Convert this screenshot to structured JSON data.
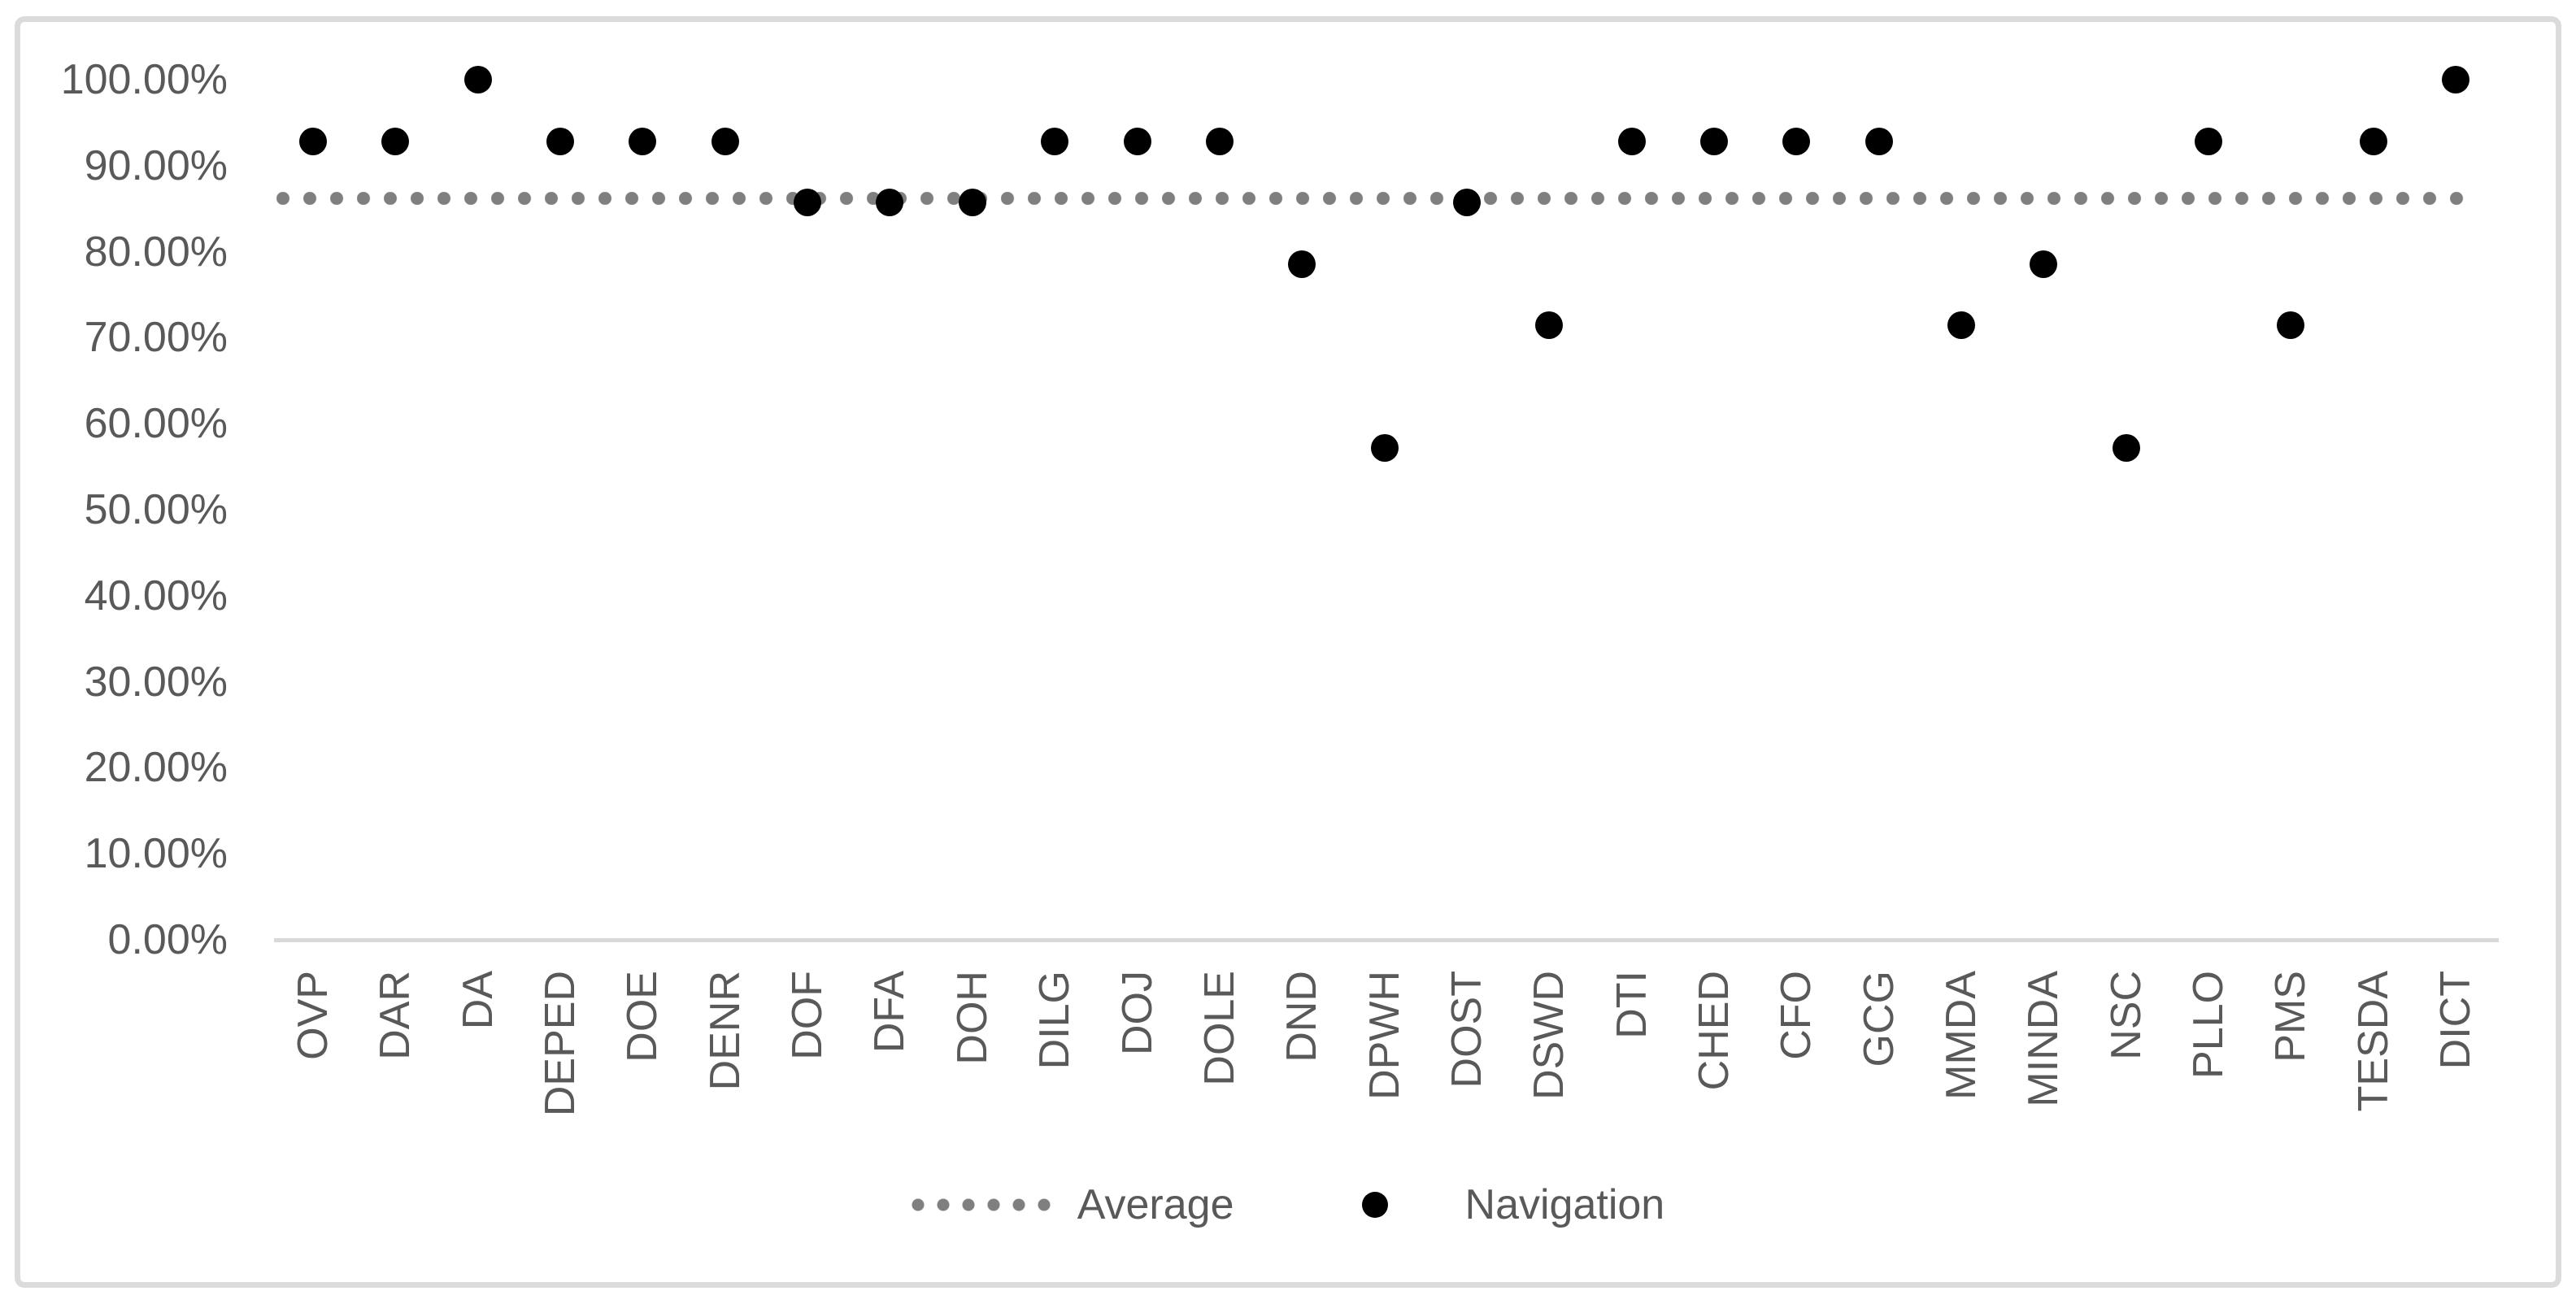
{
  "chart_data": {
    "type": "scatter",
    "title": "",
    "categories": [
      "OVP",
      "DAR",
      "DA",
      "DEPED",
      "DOE",
      "DENR",
      "DOF",
      "DFA",
      "DOH",
      "DILG",
      "DOJ",
      "DOLE",
      "DND",
      "DPWH",
      "DOST",
      "DSWD",
      "DTI",
      "CHED",
      "CFO",
      "GCG",
      "MMDA",
      "MINDA",
      "NSC",
      "PLLO",
      "PMS",
      "TESDA",
      "DICT"
    ],
    "series": [
      {
        "name": "Average",
        "style": "dotted-line",
        "value": 86.24
      },
      {
        "name": "Navigation",
        "style": "points",
        "values": [
          92.86,
          92.86,
          100.0,
          92.86,
          92.86,
          92.86,
          85.71,
          85.71,
          85.71,
          92.86,
          92.86,
          92.86,
          78.57,
          57.14,
          85.71,
          71.43,
          92.86,
          92.86,
          92.86,
          92.86,
          71.43,
          78.57,
          57.14,
          92.86,
          71.43,
          92.86,
          100.0
        ]
      }
    ],
    "y_ticks": [
      "100.00%",
      "90.00%",
      "80.00%",
      "70.00%",
      "60.00%",
      "50.00%",
      "40.00%",
      "30.00%",
      "20.00%",
      "10.00%",
      "0.00%"
    ],
    "ylim": [
      0,
      100
    ],
    "xlabel": "",
    "ylabel": "",
    "grid": false,
    "x_tick_rotation": 90,
    "legend_position": "bottom"
  },
  "colors": {
    "average": "#7F7F7F",
    "navigation": "#000000",
    "axis": "#D9D9D9",
    "border": "#DBDBDB",
    "text": "#595959",
    "background": "#FFFFFF"
  }
}
